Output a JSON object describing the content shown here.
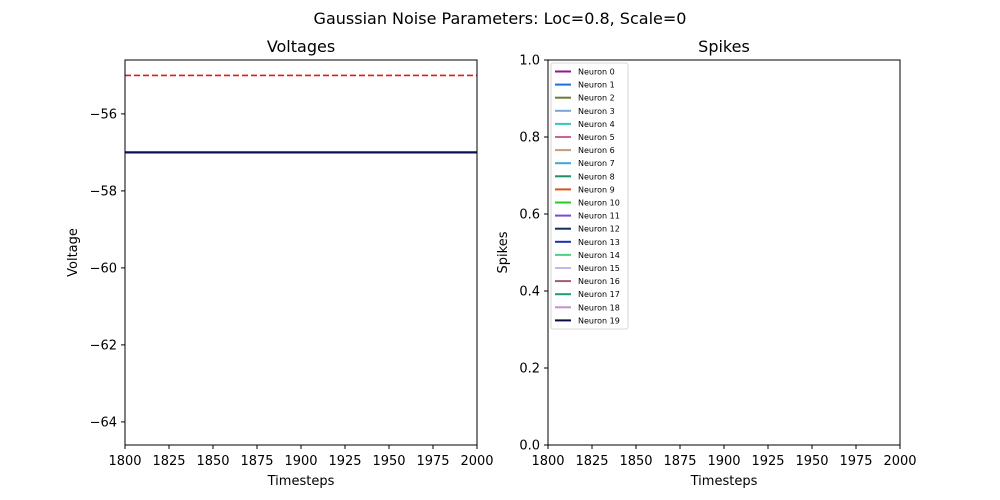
{
  "suptitle": "Gaussian Noise Parameters: Loc=0.8, Scale=0",
  "chart_data": [
    {
      "type": "line",
      "title": "Voltages",
      "xlabel": "Timesteps",
      "ylabel": "Voltage",
      "xlim": [
        1800,
        2000
      ],
      "ylim": [
        -64.6,
        -54.6
      ],
      "xticks": [
        1800,
        1825,
        1850,
        1875,
        1900,
        1925,
        1950,
        1975,
        2000
      ],
      "yticks": [
        -64,
        -62,
        -60,
        -58,
        -56
      ],
      "threshold": {
        "value": -55,
        "color": "#e31a1c",
        "style": "dashed"
      },
      "series": [
        {
          "x": [
            1800,
            2000
          ],
          "values": [
            -57,
            -57
          ],
          "color": "#0a0f5c"
        }
      ],
      "grid": false,
      "legend": false
    },
    {
      "type": "line",
      "title": "Spikes",
      "xlabel": "Timesteps",
      "ylabel": "Spikes",
      "xlim": [
        1800,
        2000
      ],
      "ylim": [
        0,
        1
      ],
      "xticks": [
        1800,
        1825,
        1850,
        1875,
        1900,
        1925,
        1950,
        1975,
        2000
      ],
      "yticks": [
        0.0,
        0.2,
        0.4,
        0.6,
        0.8,
        1.0
      ],
      "grid": false,
      "legend_position": "top-left",
      "series": [
        {
          "name": "Neuron 0",
          "color": "#8e1a8e",
          "values": []
        },
        {
          "name": "Neuron 1",
          "color": "#1f6fe0",
          "values": []
        },
        {
          "name": "Neuron 2",
          "color": "#6b7a3a",
          "values": []
        },
        {
          "name": "Neuron 3",
          "color": "#7aa5d8",
          "values": []
        },
        {
          "name": "Neuron 4",
          "color": "#2ec9c4",
          "values": []
        },
        {
          "name": "Neuron 5",
          "color": "#d0609a",
          "values": []
        },
        {
          "name": "Neuron 6",
          "color": "#c49a80",
          "values": []
        },
        {
          "name": "Neuron 7",
          "color": "#3aa9d6",
          "values": []
        },
        {
          "name": "Neuron 8",
          "color": "#1a8f6a",
          "values": []
        },
        {
          "name": "Neuron 9",
          "color": "#d9541a",
          "values": []
        },
        {
          "name": "Neuron 10",
          "color": "#22d022",
          "values": []
        },
        {
          "name": "Neuron 11",
          "color": "#7a4ad0",
          "values": []
        },
        {
          "name": "Neuron 12",
          "color": "#0f2f5a",
          "values": []
        },
        {
          "name": "Neuron 13",
          "color": "#1a2fb0",
          "values": []
        },
        {
          "name": "Neuron 14",
          "color": "#4ed08a",
          "values": []
        },
        {
          "name": "Neuron 15",
          "color": "#c8b4ee",
          "values": []
        },
        {
          "name": "Neuron 16",
          "color": "#a85a6a",
          "values": []
        },
        {
          "name": "Neuron 17",
          "color": "#1f9a7a",
          "values": []
        },
        {
          "name": "Neuron 18",
          "color": "#c890c8",
          "values": []
        },
        {
          "name": "Neuron 19",
          "color": "#0a0a4a",
          "values": []
        }
      ]
    }
  ]
}
